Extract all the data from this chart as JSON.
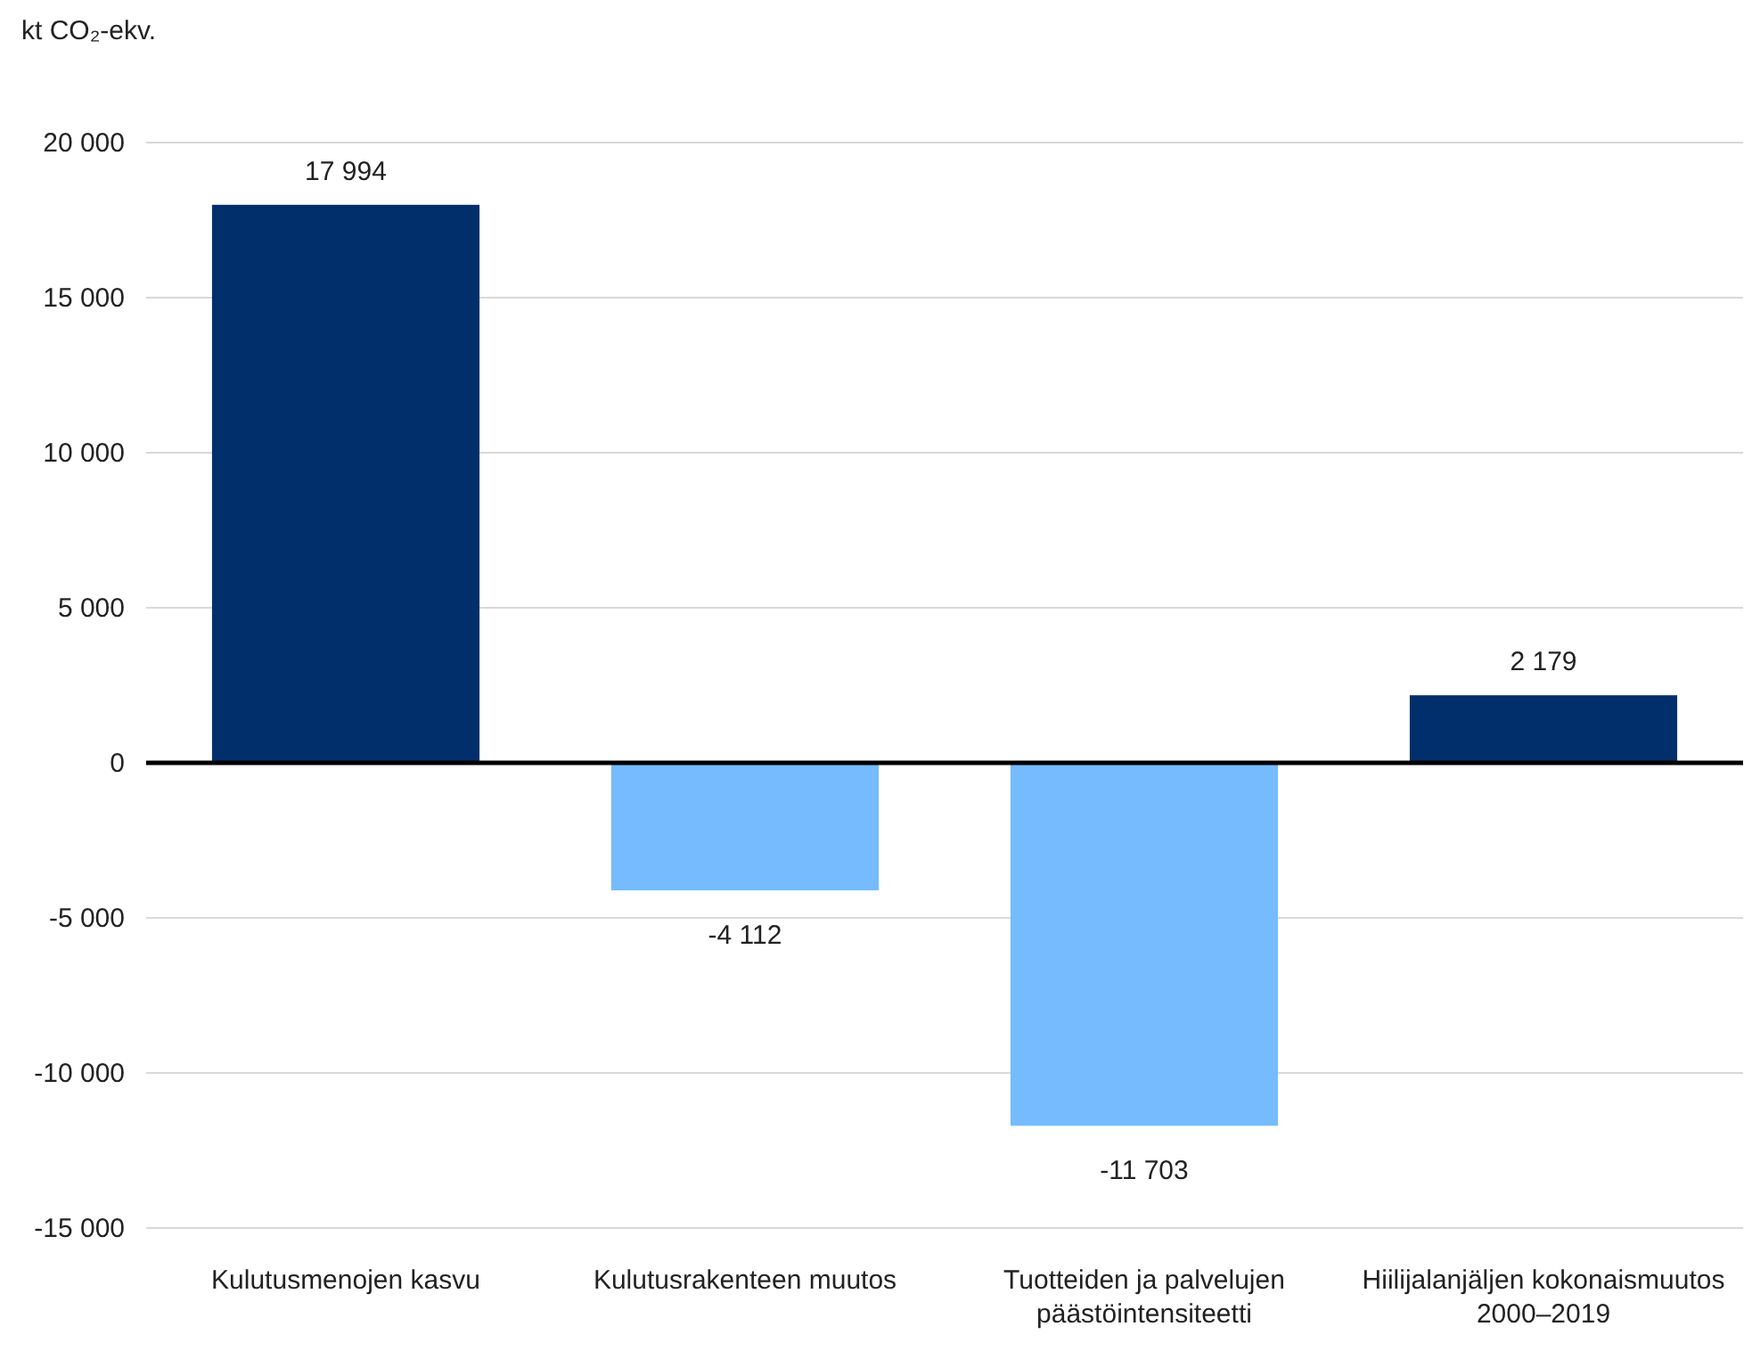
{
  "chart_data": {
    "type": "bar",
    "ylabel": "kt CO₂-ekv.",
    "categories": [
      "Kulutusmenojen kasvu",
      "Kulutusrakenteen muutos",
      "Tuotteiden ja palvelujen päästöintensiteetti",
      "Hiilijalanjäljen kokonaismuutos 2000–2019"
    ],
    "values": [
      17994,
      -4112,
      -11703,
      2179
    ],
    "colors": [
      "#002f6c",
      "#75bbfd",
      "#75bbfd",
      "#002f6c"
    ],
    "value_labels": [
      "17 994",
      "-4 112",
      "-11 703",
      "2 179"
    ],
    "ylim": [
      -15000,
      20000
    ],
    "yticks": [
      {
        "value": -15000,
        "label": "-15 000"
      },
      {
        "value": -10000,
        "label": "-10 000"
      },
      {
        "value": -5000,
        "label": "-5 000"
      },
      {
        "value": 0,
        "label": "0"
      },
      {
        "value": 5000,
        "label": "5 000"
      },
      {
        "value": 10000,
        "label": "10 000"
      },
      {
        "value": 15000,
        "label": "15 000"
      },
      {
        "value": 20000,
        "label": "20 000"
      }
    ],
    "grid": "y"
  }
}
